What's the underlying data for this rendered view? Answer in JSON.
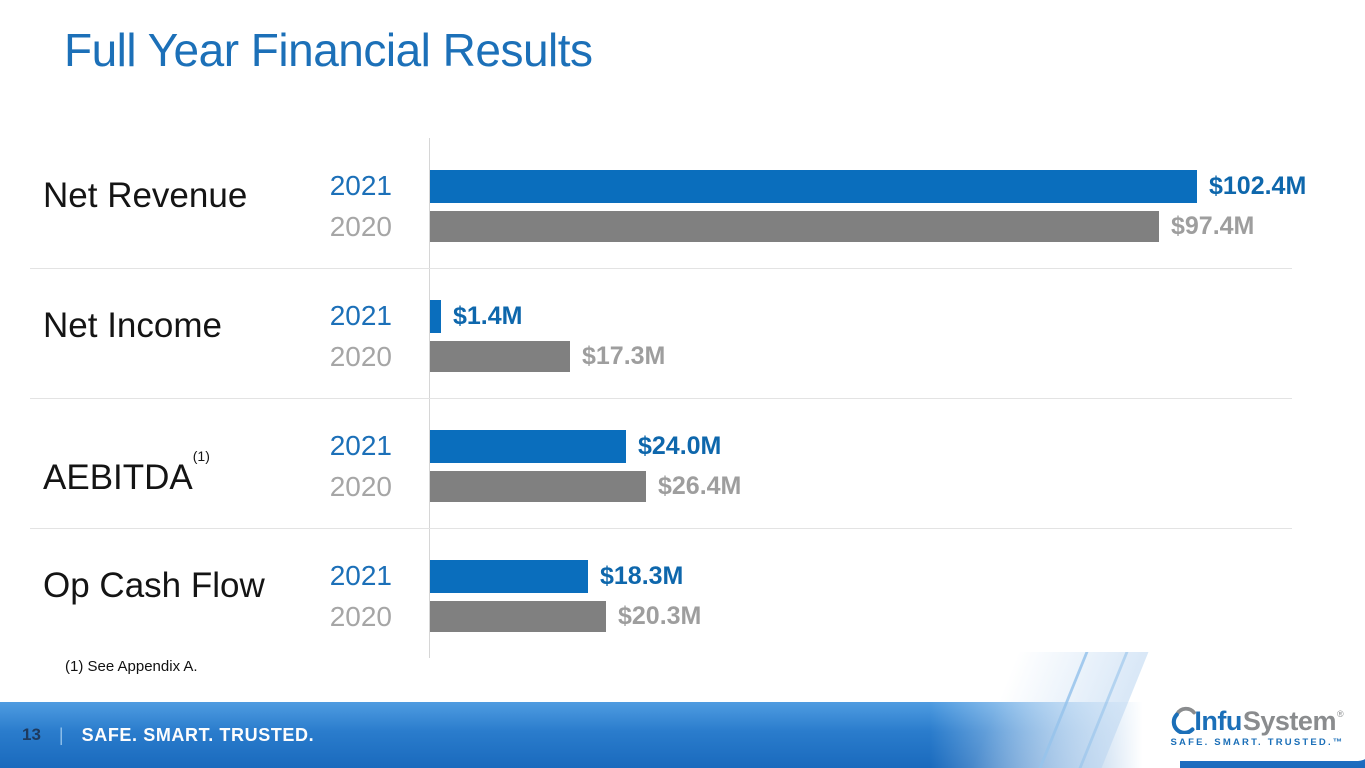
{
  "slide": {
    "title": "Full Year Financial Results",
    "footnote": "(1) See Appendix A.",
    "footer": {
      "page_number": "13",
      "separator": "|",
      "tagline": "SAFE. SMART. TRUSTED."
    },
    "logo": {
      "name_part1": "Infu",
      "name_part2": "System",
      "registered": "®",
      "tagline": "SAFE. SMART. TRUSTED.™"
    }
  },
  "chart_data": {
    "type": "bar",
    "orientation": "horizontal",
    "unit": "millions USD",
    "title": "Full Year Financial Results",
    "categories": [
      "Net Revenue",
      "Net Income",
      "AEBITDA",
      "Op Cash Flow"
    ],
    "series": [
      {
        "name": "2021",
        "values": [
          102.4,
          1.4,
          24.0,
          18.3
        ]
      },
      {
        "name": "2020",
        "values": [
          97.4,
          17.3,
          26.4,
          20.3
        ]
      }
    ],
    "grid": false,
    "legend_position": "year labels inline left of each bar",
    "rows": [
      {
        "metric": "Net Revenue",
        "sup": "",
        "y2021": {
          "year": "2021",
          "value": 102.4,
          "label": "$102.4M"
        },
        "y2020": {
          "year": "2020",
          "value": 97.4,
          "label": "$97.4M"
        },
        "xlim": [
          0,
          119
        ]
      },
      {
        "metric": "Net Income",
        "sup": "",
        "y2021": {
          "year": "2021",
          "value": 1.4,
          "label": "$1.4M"
        },
        "y2020": {
          "year": "2020",
          "value": 17.3,
          "label": "$17.3M"
        },
        "xlim": [
          0,
          110
        ]
      },
      {
        "metric": "AEBITDA",
        "sup": "(1)",
        "y2021": {
          "year": "2021",
          "value": 24.0,
          "label": "$24.0M"
        },
        "y2020": {
          "year": "2020",
          "value": 26.4,
          "label": "$26.4M"
        },
        "xlim": [
          0,
          109
        ]
      },
      {
        "metric": "Op Cash Flow",
        "sup": "",
        "y2021": {
          "year": "2021",
          "value": 18.3,
          "label": "$18.3M"
        },
        "y2020": {
          "year": "2020",
          "value": 20.3,
          "label": "$20.3M"
        },
        "xlim": [
          0,
          103
        ]
      }
    ],
    "colors": {
      "bar_2021": "#0A6EBD",
      "bar_2020": "#808080",
      "year_2021": "#1C70B8",
      "year_2020": "#A6A6A6",
      "value_2021": "#0E67AC",
      "value_2020": "#9E9E9E"
    }
  }
}
